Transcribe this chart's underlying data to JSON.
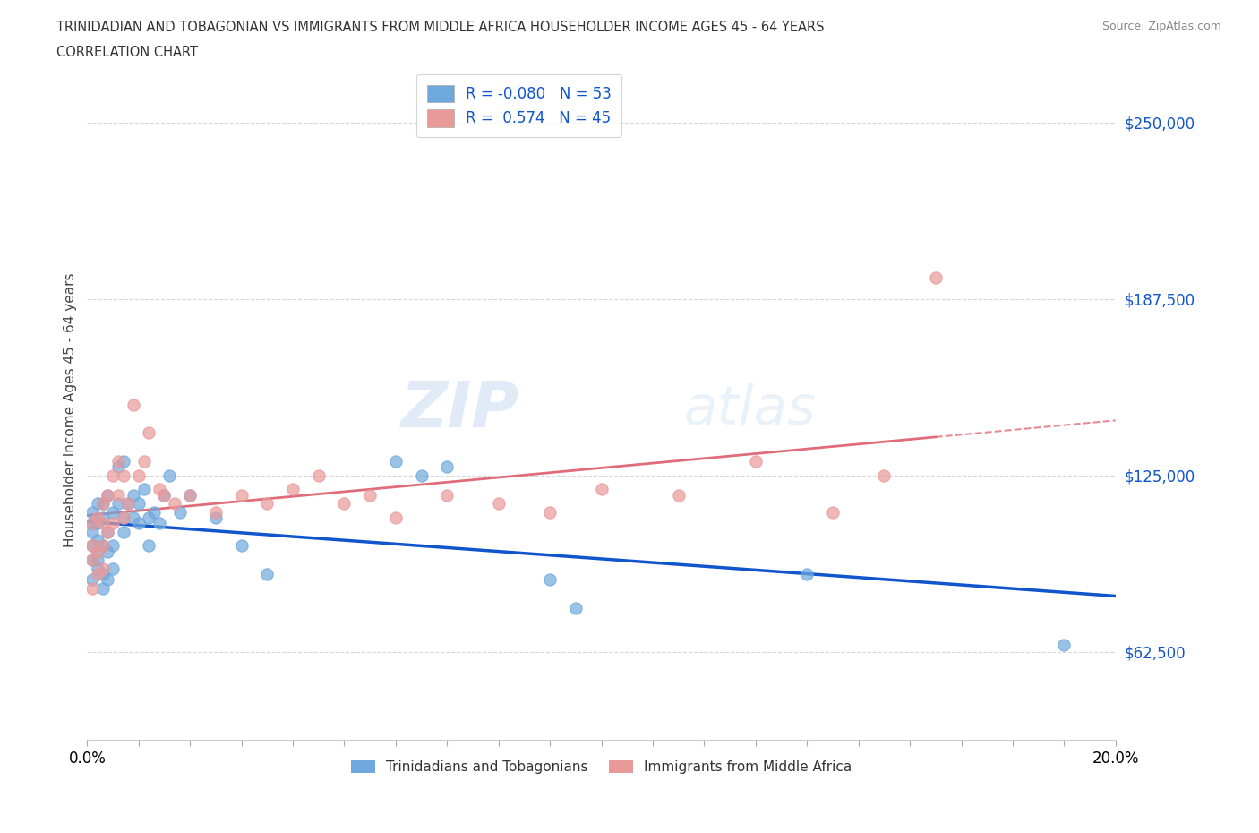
{
  "title_line1": "TRINIDADIAN AND TOBAGONIAN VS IMMIGRANTS FROM MIDDLE AFRICA HOUSEHOLDER INCOME AGES 45 - 64 YEARS",
  "title_line2": "CORRELATION CHART",
  "source_text": "Source: ZipAtlas.com",
  "ylabel": "Householder Income Ages 45 - 64 years",
  "xmin": 0.0,
  "xmax": 0.2,
  "ymin": 31250,
  "ymax": 265000,
  "yticks": [
    62500,
    125000,
    187500,
    250000
  ],
  "xticks": [
    0.0,
    0.01,
    0.02,
    0.03,
    0.04,
    0.05,
    0.06,
    0.07,
    0.08,
    0.09,
    0.1,
    0.11,
    0.12,
    0.13,
    0.14,
    0.15,
    0.16,
    0.17,
    0.18,
    0.19,
    0.2
  ],
  "xtick_labels_show": {
    "0.0": "0.0%",
    "0.2": "20.0%"
  },
  "ytick_labels": [
    "$62,500",
    "$125,000",
    "$187,500",
    "$250,000"
  ],
  "blue_color": "#6fa8dc",
  "blue_edge": "#6fa8dc",
  "pink_color": "#ea9999",
  "pink_edge": "#ea9999",
  "blue_line_color": "#1155cc",
  "pink_line_color": "#e06c7a",
  "pink_dash_color": "#e06c7a",
  "legend_text1": "R = -0.080   N = 53",
  "legend_text2": "R =  0.574   N = 45",
  "legend_label1": "Trinidadians and Tobagonians",
  "legend_label2": "Immigrants from Middle Africa",
  "watermark": "ZIPatlas",
  "blue_R": -0.08,
  "pink_R": 0.574,
  "blue_x": [
    0.001,
    0.001,
    0.001,
    0.001,
    0.001,
    0.001,
    0.002,
    0.002,
    0.002,
    0.002,
    0.002,
    0.002,
    0.003,
    0.003,
    0.003,
    0.003,
    0.003,
    0.004,
    0.004,
    0.004,
    0.004,
    0.005,
    0.005,
    0.005,
    0.006,
    0.006,
    0.007,
    0.007,
    0.007,
    0.008,
    0.009,
    0.009,
    0.01,
    0.01,
    0.011,
    0.012,
    0.012,
    0.013,
    0.014,
    0.015,
    0.016,
    0.018,
    0.02,
    0.025,
    0.03,
    0.035,
    0.06,
    0.065,
    0.07,
    0.09,
    0.095,
    0.14,
    0.19
  ],
  "blue_y": [
    100000,
    105000,
    95000,
    108000,
    112000,
    88000,
    102000,
    98000,
    108000,
    115000,
    95000,
    92000,
    110000,
    100000,
    115000,
    90000,
    85000,
    105000,
    98000,
    88000,
    118000,
    112000,
    100000,
    92000,
    128000,
    115000,
    130000,
    110000,
    105000,
    115000,
    118000,
    110000,
    108000,
    115000,
    120000,
    110000,
    100000,
    112000,
    108000,
    118000,
    125000,
    112000,
    118000,
    110000,
    100000,
    90000,
    130000,
    125000,
    128000,
    88000,
    78000,
    90000,
    65000
  ],
  "pink_x": [
    0.001,
    0.001,
    0.001,
    0.001,
    0.002,
    0.002,
    0.002,
    0.003,
    0.003,
    0.003,
    0.003,
    0.004,
    0.004,
    0.005,
    0.005,
    0.006,
    0.006,
    0.007,
    0.007,
    0.008,
    0.009,
    0.01,
    0.011,
    0.012,
    0.014,
    0.015,
    0.017,
    0.02,
    0.025,
    0.03,
    0.035,
    0.04,
    0.045,
    0.05,
    0.055,
    0.06,
    0.07,
    0.08,
    0.09,
    0.1,
    0.115,
    0.13,
    0.145,
    0.155,
    0.165
  ],
  "pink_y": [
    100000,
    95000,
    108000,
    85000,
    110000,
    98000,
    90000,
    115000,
    108000,
    100000,
    92000,
    118000,
    105000,
    125000,
    108000,
    118000,
    130000,
    110000,
    125000,
    115000,
    150000,
    125000,
    130000,
    140000,
    120000,
    118000,
    115000,
    118000,
    112000,
    118000,
    115000,
    120000,
    125000,
    115000,
    118000,
    110000,
    118000,
    115000,
    112000,
    120000,
    118000,
    130000,
    112000,
    125000,
    195000
  ]
}
